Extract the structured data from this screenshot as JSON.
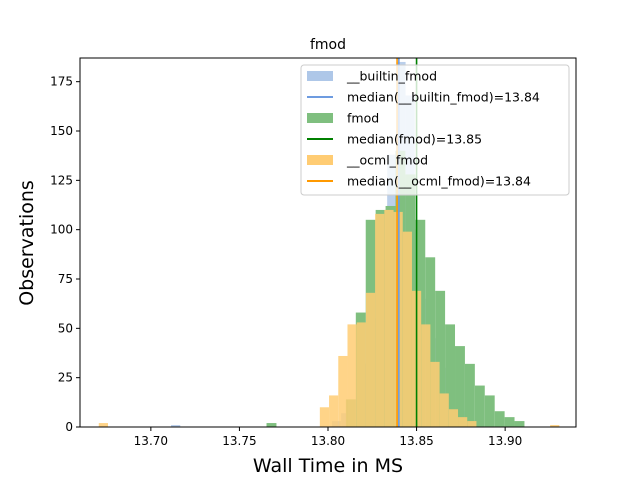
{
  "chart_data": {
    "type": "histogram",
    "title": "fmod",
    "xlabel": "Wall Time in MS",
    "ylabel": "Observations",
    "xlim": [
      13.66,
      13.94
    ],
    "ylim": [
      0,
      187
    ],
    "xticks": [
      13.7,
      13.75,
      13.8,
      13.85,
      13.9
    ],
    "xtick_labels": [
      "13.70",
      "13.75",
      "13.80",
      "13.85",
      "13.90"
    ],
    "yticks": [
      0,
      25,
      50,
      75,
      100,
      125,
      150,
      175
    ],
    "ytick_labels": [
      "0",
      "25",
      "50",
      "75",
      "100",
      "125",
      "150",
      "175"
    ],
    "legend_position": "top-right",
    "series": [
      {
        "name": "__builtin_fmod",
        "color": "#aec7e8",
        "opacity": 0.85,
        "bin_width": 0.0052,
        "bins": [
          [
            13.7114,
            1
          ],
          [
            13.8022,
            3
          ],
          [
            13.8074,
            7
          ],
          [
            13.8126,
            14
          ],
          [
            13.8178,
            32
          ],
          [
            13.823,
            55
          ],
          [
            13.8282,
            85
          ],
          [
            13.8334,
            138
          ],
          [
            13.8386,
            185
          ],
          [
            13.8438,
            168
          ],
          [
            13.849,
            100
          ],
          [
            13.8542,
            65
          ],
          [
            13.8594,
            45
          ],
          [
            13.8646,
            30
          ],
          [
            13.8698,
            15
          ],
          [
            13.875,
            8
          ],
          [
            13.8802,
            3
          ]
        ]
      },
      {
        "name": "fmod",
        "color": "#7fbf7f",
        "opacity": 1.0,
        "bin_width": 0.0056,
        "bins": [
          [
            13.7653,
            2
          ],
          [
            13.8101,
            14
          ],
          [
            13.8157,
            58
          ],
          [
            13.8213,
            105
          ],
          [
            13.8269,
            110
          ],
          [
            13.8325,
            112
          ],
          [
            13.8381,
            140
          ],
          [
            13.8437,
            128
          ],
          [
            13.8493,
            105
          ],
          [
            13.8549,
            86
          ],
          [
            13.8605,
            69
          ],
          [
            13.8661,
            52
          ],
          [
            13.8717,
            41
          ],
          [
            13.8773,
            32
          ],
          [
            13.8829,
            21
          ],
          [
            13.8885,
            16
          ],
          [
            13.8941,
            8
          ],
          [
            13.8997,
            5
          ],
          [
            13.9053,
            3
          ]
        ]
      },
      {
        "name": "__ocml_fmod",
        "color": "#ffcc73",
        "opacity": 0.85,
        "bin_width": 0.0052,
        "bins": [
          [
            13.6706,
            2
          ],
          [
            13.7954,
            10
          ],
          [
            13.8006,
            16
          ],
          [
            13.8058,
            36
          ],
          [
            13.811,
            52
          ],
          [
            13.8162,
            53
          ],
          [
            13.8214,
            68
          ],
          [
            13.8266,
            108
          ],
          [
            13.8318,
            110
          ],
          [
            13.837,
            109
          ],
          [
            13.8422,
            99
          ],
          [
            13.8474,
            69
          ],
          [
            13.8526,
            52
          ],
          [
            13.8578,
            33
          ],
          [
            13.863,
            17
          ],
          [
            13.8682,
            9
          ],
          [
            13.8734,
            5
          ],
          [
            13.8786,
            3
          ],
          [
            13.9254,
            1
          ]
        ]
      }
    ],
    "medians": [
      {
        "label": "median(__builtin_fmod)=13.84",
        "value": 13.84,
        "color": "#6d9be0"
      },
      {
        "label": "median(fmod)=13.85",
        "value": 13.85,
        "color": "#008000"
      },
      {
        "label": "median(__ocml_fmod)=13.84",
        "value": 13.839,
        "color": "#ff9900"
      }
    ],
    "legend": [
      {
        "kind": "patch",
        "label": "__builtin_fmod",
        "color": "#aec7e8"
      },
      {
        "kind": "line",
        "label": "median(__builtin_fmod)=13.84",
        "color": "#6d9be0"
      },
      {
        "kind": "patch",
        "label": "fmod",
        "color": "#7fbf7f"
      },
      {
        "kind": "line",
        "label": "median(fmod)=13.85",
        "color": "#008000"
      },
      {
        "kind": "patch",
        "label": "__ocml_fmod",
        "color": "#ffcc73"
      },
      {
        "kind": "line",
        "label": "median(__ocml_fmod)=13.84",
        "color": "#ff9900"
      }
    ]
  }
}
